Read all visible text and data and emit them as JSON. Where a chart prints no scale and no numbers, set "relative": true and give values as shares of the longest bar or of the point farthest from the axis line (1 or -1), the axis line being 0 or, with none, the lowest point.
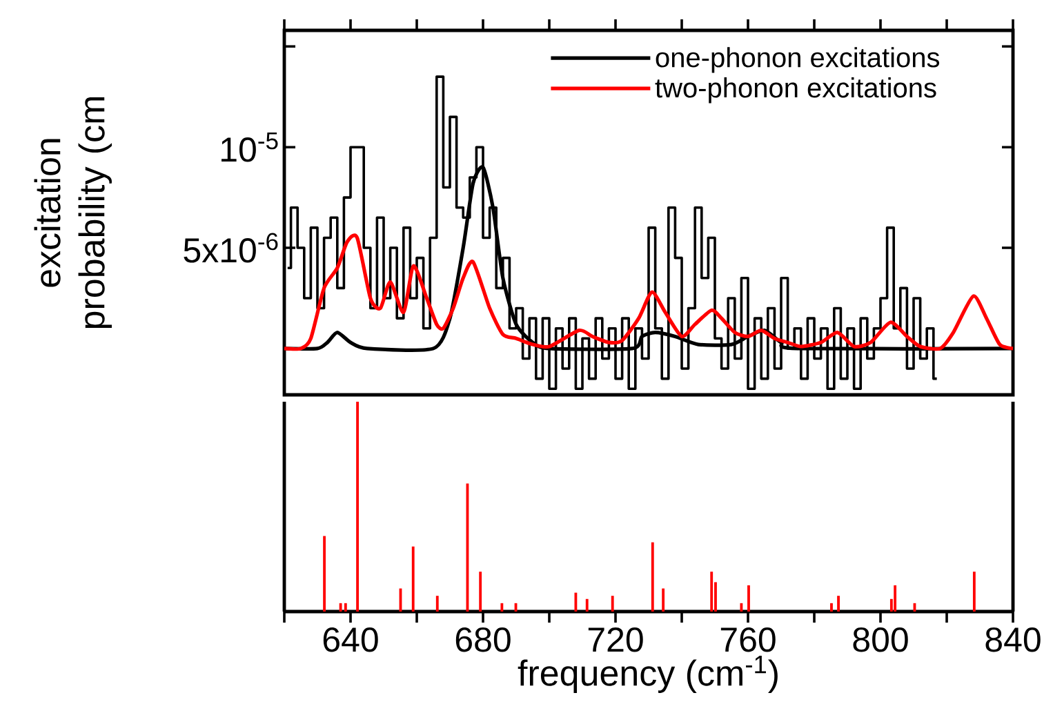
{
  "chart_data": [
    {
      "type": "line",
      "ylabel": "excitation probability (cm",
      "xlim": [
        620,
        840
      ],
      "xticks": [
        {
          "value": 620,
          "label": null
        },
        {
          "value": 640,
          "label": null
        },
        {
          "value": 660,
          "label": null
        },
        {
          "value": 680,
          "label": null
        },
        {
          "value": 700,
          "label": null
        },
        {
          "value": 720,
          "label": null
        },
        {
          "value": 740,
          "label": null
        },
        {
          "value": 760,
          "label": null
        },
        {
          "value": 780,
          "label": null
        },
        {
          "value": 800,
          "label": null
        },
        {
          "value": 820,
          "label": null
        },
        {
          "value": 840,
          "label": null
        }
      ],
      "ylim": [
        -2.3e-06,
        1.58e-05
      ],
      "yticks": [
        {
          "value": 5e-06,
          "label": "5x10$^{-6}$"
        },
        {
          "value": 1e-05,
          "label": "10$^{-5}$"
        },
        {
          "value": 1.5e-05,
          "label": null
        }
      ],
      "tick_labels": "y",
      "legend": "top right",
      "marker": "none",
      "series": [
        {
          "type": "step",
          "color": "#000000",
          "x": [
            621,
            623,
            625,
            627,
            629,
            631,
            633,
            635,
            637,
            639,
            641,
            643,
            645,
            647,
            649,
            651,
            653,
            655,
            657,
            659,
            661,
            663,
            665,
            667,
            669,
            671,
            673,
            675,
            677,
            679,
            681,
            683,
            685,
            687,
            689,
            691,
            693,
            695,
            697,
            699,
            701,
            703,
            705,
            707,
            709,
            711,
            713,
            715,
            717,
            719,
            721,
            723,
            725,
            727,
            729,
            731,
            733,
            735,
            737,
            739,
            741,
            743,
            745,
            747,
            749,
            751,
            753,
            755,
            757,
            759,
            761,
            763,
            765,
            767,
            769,
            771,
            773,
            775,
            777,
            779,
            781,
            783,
            785,
            787,
            789,
            791,
            793,
            795,
            797,
            799,
            801,
            803,
            805,
            807,
            809,
            811,
            813,
            815,
            817
          ],
          "values": [
            4e-06,
            7e-06,
            5e-06,
            2.5e-06,
            6e-06,
            2e-06,
            5.5e-06,
            6.5e-06,
            3e-06,
            7.5e-06,
            1e-05,
            1e-05,
            5e-06,
            2e-06,
            6.5e-06,
            2.5e-06,
            5e-06,
            1.5e-06,
            6e-06,
            2.5e-06,
            4.5e-06,
            1e-06,
            5.5e-06,
            1.35e-05,
            8e-06,
            1.15e-05,
            7e-06,
            6.5e-06,
            8.5e-06,
            1e-05,
            5.5e-06,
            7e-06,
            3e-06,
            4.5e-06,
            1e-06,
            2e-06,
            -5e-07,
            1.5e-06,
            -1.5e-06,
            1.5e-06,
            -2e-06,
            1e-06,
            -1e-06,
            1.5e-06,
            -2e-06,
            5e-07,
            -1.5e-06,
            1.5e-06,
            -5e-07,
            1e-06,
            -1.5e-06,
            1.5e-06,
            -2e-06,
            1e-06,
            -5e-07,
            6e-06,
            1e-06,
            -1.5e-06,
            7e-06,
            4.5e-06,
            -1e-06,
            2e-06,
            7e-06,
            3.5e-06,
            5.5e-06,
            5e-07,
            -1e-06,
            2.5e-06,
            -5e-07,
            3.5e-06,
            -2e-06,
            1.5e-06,
            -1.5e-06,
            2e-06,
            -1e-06,
            3.5e-06,
            0,
            1e-06,
            -1.5e-06,
            1.5e-06,
            -5e-07,
            1e-06,
            -2e-06,
            2e-06,
            -1.5e-06,
            1e-06,
            -2e-06,
            1.5e-06,
            -5e-07,
            1e-06,
            2.5e-06,
            6e-06,
            1e-06,
            3e-06,
            -1e-06,
            2.5e-06,
            -5e-07,
            1e-06,
            -1.5e-06
          ]
        },
        {
          "type": "line",
          "name": "one-phonon excitations",
          "color": "#000000",
          "x": [
            620,
            630,
            633,
            636,
            640,
            645,
            665,
            670,
            674,
            677,
            680,
            683,
            686,
            690,
            695,
            700,
            725,
            728,
            732,
            738,
            745,
            755,
            760,
            765,
            770,
            775,
            840
          ],
          "values": [
            0,
            0,
            3e-07,
            8e-07,
            3e-07,
            0,
            0,
            1.5e-06,
            5e-06,
            8.2e-06,
            9e-06,
            7e-06,
            3.5e-06,
            1.2e-06,
            3e-07,
            0,
            0,
            6e-07,
            8e-07,
            6e-07,
            2e-07,
            2e-07,
            6e-07,
            9e-07,
            3e-07,
            0,
            0
          ]
        },
        {
          "type": "line",
          "name": "two-phonon excitations",
          "color": "#ff0000",
          "x": [
            620,
            625,
            628,
            632,
            636,
            639,
            642,
            646,
            649,
            652,
            656,
            659,
            663,
            666,
            668,
            671,
            674,
            677,
            682,
            686,
            690,
            695,
            700,
            709,
            713,
            718,
            722,
            727,
            731,
            735,
            740,
            744,
            749,
            752,
            756,
            760,
            764,
            768,
            772,
            776,
            782,
            787,
            792,
            797,
            803,
            808,
            812,
            818,
            822,
            828,
            832,
            836,
            840
          ],
          "values": [
            0,
            0,
            5e-07,
            3e-06,
            4e-06,
            5.3e-06,
            5.5e-06,
            2.5e-06,
            2e-06,
            3.3e-06,
            1.8e-06,
            4.1e-06,
            2.5e-06,
            1.2e-06,
            1e-06,
            2e-06,
            3.5e-06,
            4.3e-06,
            2e-06,
            7e-07,
            5e-07,
            2e-07,
            1e-07,
            9e-07,
            6e-07,
            3e-07,
            4e-07,
            1.5e-06,
            2.8e-06,
            1.8e-06,
            6e-07,
            1.2e-06,
            1.9e-06,
            1.5e-06,
            8e-07,
            6e-07,
            9e-07,
            5e-07,
            3e-07,
            1e-07,
            3e-07,
            8e-07,
            1e-07,
            3e-07,
            1.3e-06,
            6e-07,
            1e-07,
            0,
            8e-07,
            2.6e-06,
            1.5e-06,
            2e-07,
            0
          ]
        }
      ]
    },
    {
      "type": "bar",
      "relative": true,
      "xlabel": "frequency (cm$^{-1}$)",
      "xlim": [
        620,
        840
      ],
      "xticks": [
        {
          "value": 620,
          "label": null
        },
        {
          "value": 640,
          "label": "640"
        },
        {
          "value": 660,
          "label": null
        },
        {
          "value": 680,
          "label": "680"
        },
        {
          "value": 700,
          "label": null
        },
        {
          "value": 720,
          "label": "720"
        },
        {
          "value": 740,
          "label": null
        },
        {
          "value": 760,
          "label": "760"
        },
        {
          "value": 780,
          "label": null
        },
        {
          "value": 800,
          "label": "800"
        },
        {
          "value": 820,
          "label": null
        },
        {
          "value": 840,
          "label": "840"
        }
      ],
      "tick_labels": "x",
      "color": "#ff0000",
      "x": [
        632.1,
        637,
        638.5,
        642.1,
        655.1,
        658.9,
        666.2,
        675.3,
        679.2,
        685.7,
        689.9,
        708,
        711.4,
        719.1,
        731.2,
        734.4,
        749,
        750.2,
        758,
        760.2,
        785.2,
        787.3,
        803.3,
        804.4,
        810.3,
        828.3
      ],
      "values": [
        0.36,
        0.04,
        0.04,
        1,
        0.11,
        0.31,
        0.075,
        0.61,
        0.19,
        0.04,
        0.04,
        0.09,
        0.06,
        0.075,
        0.33,
        0.11,
        0.19,
        0.14,
        0.04,
        0.125,
        0.04,
        0.075,
        0.06,
        0.125,
        0.04,
        0.19
      ]
    }
  ]
}
